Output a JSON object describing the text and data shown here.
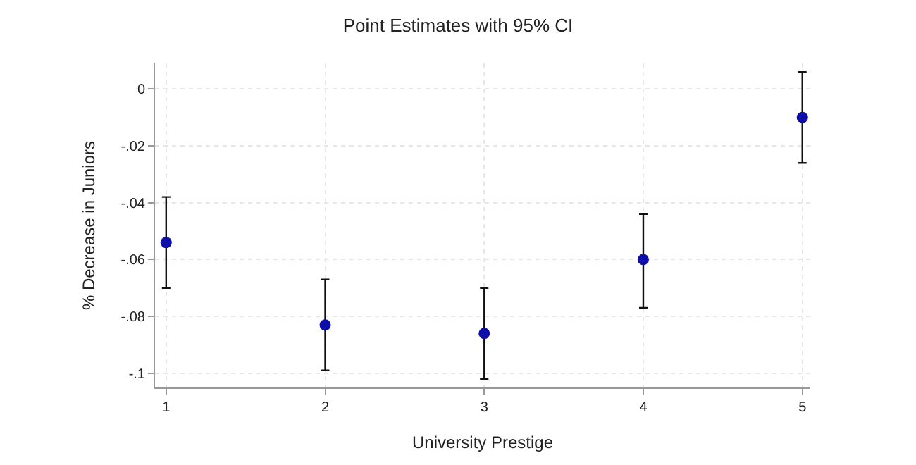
{
  "chart_data": {
    "type": "scatter",
    "title": "Point Estimates with 95% CI",
    "xlabel": "University Prestige",
    "ylabel": "% Decrease in Juniors",
    "x": [
      1,
      2,
      3,
      4,
      5
    ],
    "series": [
      {
        "color": "#0d0da8",
        "values": [
          -0.054,
          -0.083,
          -0.086,
          -0.06,
          -0.01
        ],
        "errors": [
          [
            -0.07,
            -0.038
          ],
          [
            -0.099,
            -0.067
          ],
          [
            -0.102,
            -0.07
          ],
          [
            -0.077,
            -0.044
          ],
          [
            -0.026,
            0.006
          ]
        ]
      }
    ],
    "xlim": [
      0.93,
      5.05
    ],
    "xticks": [
      1,
      2,
      3,
      4,
      5
    ],
    "ylim": [
      -0.105,
      0.009
    ],
    "yticks": [
      {
        "value": 0,
        "label": "0"
      },
      {
        "value": -0.02,
        "label": "-.02"
      },
      {
        "value": -0.04,
        "label": "-.04"
      },
      {
        "value": -0.06,
        "label": "-.06"
      },
      {
        "value": -0.08,
        "label": "-.08"
      },
      {
        "value": -0.1,
        "label": "-.1"
      }
    ],
    "grid": true,
    "marker": "circle"
  }
}
